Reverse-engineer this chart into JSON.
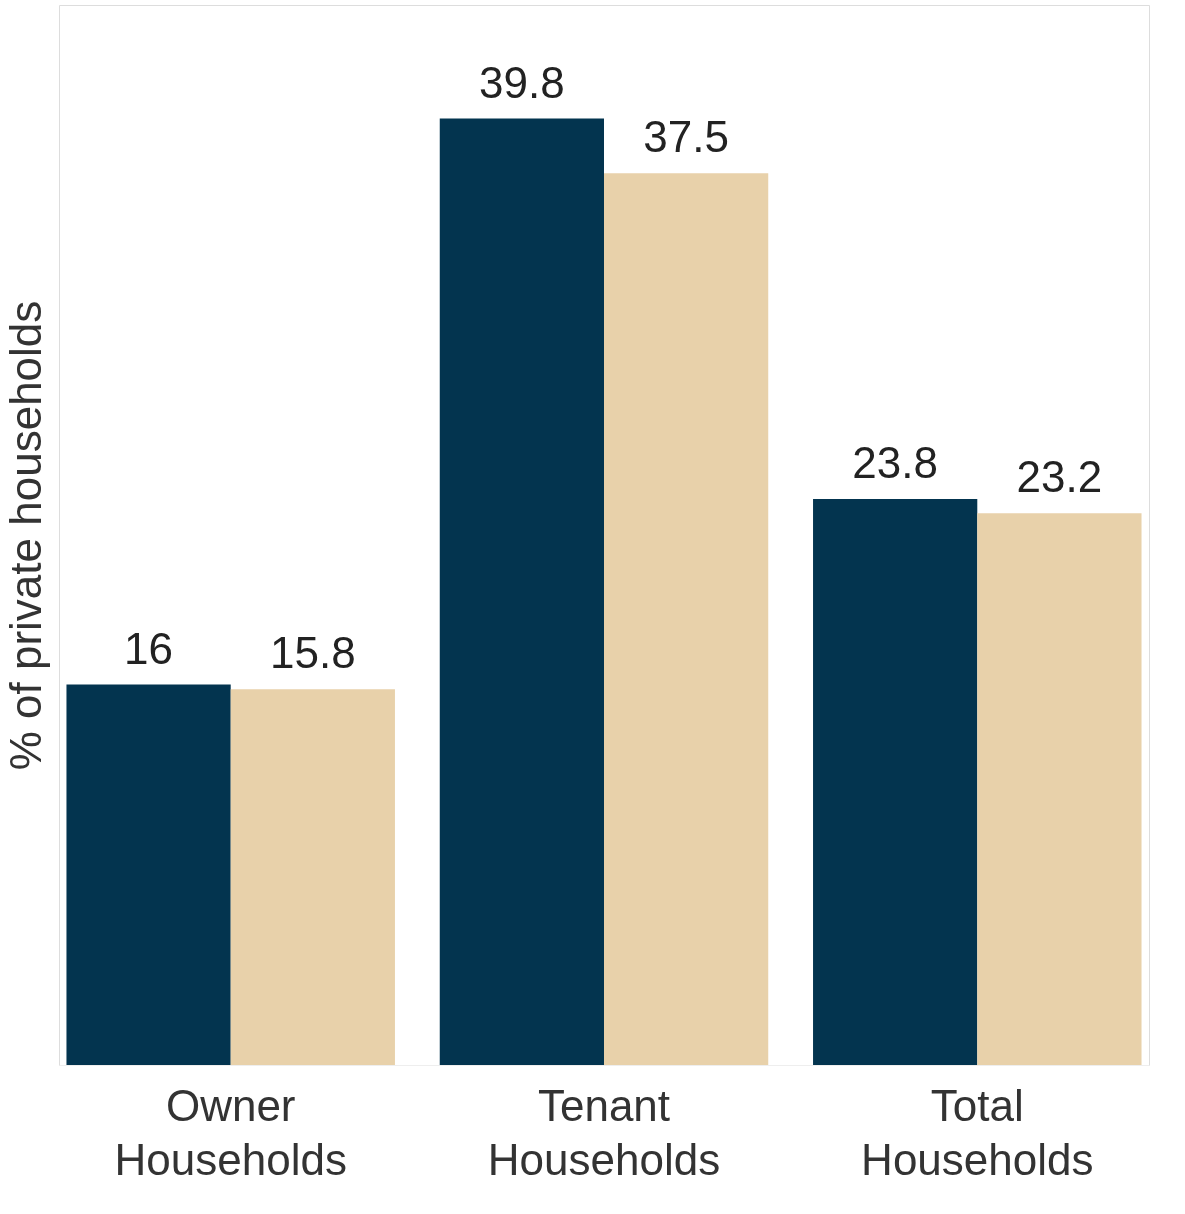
{
  "chart_data": {
    "type": "bar",
    "ylabel": "% of private households",
    "categories": [
      "Owner Households",
      "Tenant Households",
      "Total Households"
    ],
    "series": [
      {
        "color": "#03344f",
        "values": [
          16,
          39.8,
          23.8
        ]
      },
      {
        "color": "#e8d1aa",
        "values": [
          15.8,
          37.5,
          23.2
        ]
      }
    ],
    "data_labels": true,
    "grid": false,
    "legend": false
  }
}
